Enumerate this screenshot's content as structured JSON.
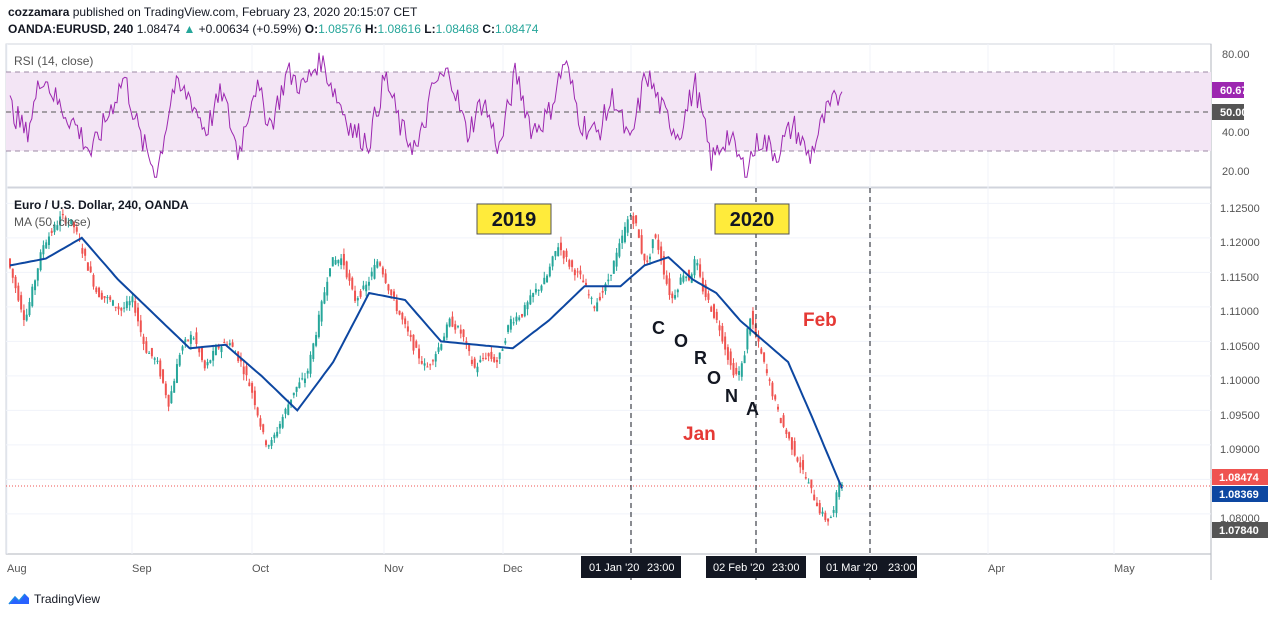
{
  "header": {
    "user": "cozzamara",
    "published": "published on TradingView.com, February 23, 2020 20:15:07 CET",
    "symbol": "OANDA:EURUSD, 240",
    "last": "1.08474",
    "change": "+0.00634 (+0.59%)",
    "o_label": "O:",
    "o": "1.08576",
    "h_label": "H:",
    "h": "1.08616",
    "l_label": "L:",
    "l": "1.08468",
    "c_label": "C:",
    "c": "1.08474"
  },
  "rsi_panel": {
    "title": "RSI (14, close)",
    "ticks": [
      "80.00",
      "60.00",
      "50.00",
      "40.00",
      "20.00"
    ],
    "current_value": "60.67",
    "mid_value": "50.00"
  },
  "price_panel": {
    "title": "Euro / U.S. Dollar, 240, OANDA",
    "ma_label": "MA (50, close)",
    "ticks": [
      "1.12500",
      "1.12000",
      "1.11500",
      "1.11000",
      "1.10500",
      "1.10000",
      "1.09500",
      "1.09000",
      "1.08500",
      "1.08000"
    ],
    "last_price_label": "1.08474",
    "ma_price_label": "1.08369",
    "low_price_label": "1.07840"
  },
  "annotations": {
    "year1": "2019",
    "year2": "2020",
    "corona": [
      "C",
      "O",
      "R",
      "O",
      "N",
      "A"
    ],
    "jan": "Jan",
    "feb": "Feb"
  },
  "time_axis": {
    "months": [
      "Aug",
      "Sep",
      "Oct",
      "Nov",
      "Dec",
      "Apr",
      "May"
    ],
    "markers": [
      "01 Jan '20",
      "02 Feb '20",
      "01 Mar '20"
    ],
    "marker_time": "23:00"
  },
  "footer": {
    "brand": "TradingView"
  },
  "colors": {
    "rsi_line": "#9c27b0",
    "rsi_band": "#f3e5f5",
    "ma_line": "#0d47a1",
    "candle_up": "#26a69a",
    "candle_down": "#ef5350",
    "last_price": "#ef5350",
    "ma_label": "#0d47a1",
    "annotation_box": "#ffeb3b",
    "annotation_red": "#e53935"
  },
  "chart_data": {
    "type": "candlestick",
    "symbol": "EURUSD",
    "timeframe": "240",
    "price_ylim": [
      1.0765,
      1.1265
    ],
    "rsi_ylim": [
      15,
      85
    ],
    "price_path": [
      [
        0,
        1.117
      ],
      [
        3,
        1.108
      ],
      [
        6,
        1.119
      ],
      [
        9,
        1.123
      ],
      [
        11,
        1.122
      ],
      [
        13,
        1.117
      ],
      [
        15,
        1.112
      ],
      [
        17,
        1.111
      ],
      [
        19,
        1.1095
      ],
      [
        21,
        1.111
      ],
      [
        23,
        1.104
      ],
      [
        25,
        1.102
      ],
      [
        27,
        1.096
      ],
      [
        29,
        1.104
      ],
      [
        31,
        1.106
      ],
      [
        33,
        1.101
      ],
      [
        35,
        1.104
      ],
      [
        37,
        1.105
      ],
      [
        39,
        1.102
      ],
      [
        41,
        1.0975
      ],
      [
        42,
        1.094
      ],
      [
        43,
        1.0905
      ],
      [
        44,
        1.09
      ],
      [
        46,
        1.094
      ],
      [
        48,
        1.098
      ],
      [
        50,
        1.1
      ],
      [
        52,
        1.108
      ],
      [
        54,
        1.1165
      ],
      [
        56,
        1.117
      ],
      [
        58,
        1.111
      ],
      [
        60,
        1.113
      ],
      [
        62,
        1.117
      ],
      [
        64,
        1.112
      ],
      [
        66,
        1.108
      ],
      [
        68,
        1.104
      ],
      [
        70,
        1.101
      ],
      [
        72,
        1.104
      ],
      [
        74,
        1.108
      ],
      [
        76,
        1.106
      ],
      [
        78,
        1.101
      ],
      [
        80,
        1.103
      ],
      [
        82,
        1.102
      ],
      [
        84,
        1.108
      ],
      [
        86,
        1.109
      ],
      [
        88,
        1.112
      ],
      [
        90,
        1.114
      ],
      [
        92,
        1.119
      ],
      [
        94,
        1.116
      ],
      [
        96,
        1.114
      ],
      [
        98,
        1.11
      ],
      [
        100,
        1.113
      ],
      [
        102,
        1.118
      ],
      [
        104,
        1.1235
      ],
      [
        105,
        1.122
      ],
      [
        106,
        1.118
      ],
      [
        107,
        1.116
      ],
      [
        108,
        1.1205
      ],
      [
        109,
        1.118
      ],
      [
        110,
        1.114
      ],
      [
        111,
        1.111
      ],
      [
        112,
        1.113
      ],
      [
        113,
        1.115
      ],
      [
        114,
        1.114
      ],
      [
        115,
        1.117
      ],
      [
        116,
        1.113
      ],
      [
        117,
        1.111
      ],
      [
        118,
        1.109
      ],
      [
        119,
        1.107
      ],
      [
        120,
        1.104
      ],
      [
        121,
        1.101
      ],
      [
        122,
        1.1
      ],
      [
        123,
        1.102
      ],
      [
        124,
        1.109
      ],
      [
        125,
        1.106
      ],
      [
        126,
        1.103
      ],
      [
        127,
        1.1
      ],
      [
        128,
        1.097
      ],
      [
        129,
        1.094
      ],
      [
        130,
        1.092
      ],
      [
        131,
        1.09
      ],
      [
        132,
        1.088
      ],
      [
        133,
        1.086
      ],
      [
        134,
        1.084
      ],
      [
        135,
        1.082
      ],
      [
        136,
        1.08
      ],
      [
        137,
        1.079
      ],
      [
        138,
        1.08
      ],
      [
        139,
        1.0848
      ]
    ],
    "ma_path": [
      [
        0,
        1.116
      ],
      [
        6,
        1.117
      ],
      [
        12,
        1.12
      ],
      [
        18,
        1.114
      ],
      [
        24,
        1.109
      ],
      [
        30,
        1.104
      ],
      [
        36,
        1.1045
      ],
      [
        42,
        1.1
      ],
      [
        48,
        1.095
      ],
      [
        54,
        1.102
      ],
      [
        60,
        1.112
      ],
      [
        66,
        1.111
      ],
      [
        72,
        1.105
      ],
      [
        78,
        1.1045
      ],
      [
        84,
        1.104
      ],
      [
        90,
        1.108
      ],
      [
        96,
        1.113
      ],
      [
        102,
        1.113
      ],
      [
        106,
        1.116
      ],
      [
        110,
        1.1172
      ],
      [
        114,
        1.114
      ],
      [
        118,
        1.112
      ],
      [
        122,
        1.108
      ],
      [
        126,
        1.105
      ],
      [
        130,
        1.102
      ],
      [
        134,
        1.094
      ],
      [
        139,
        1.0837
      ]
    ],
    "rsi_path": [
      [
        0,
        55
      ],
      [
        2,
        40
      ],
      [
        4,
        72
      ],
      [
        6,
        55
      ],
      [
        8,
        45
      ],
      [
        10,
        30
      ],
      [
        12,
        50
      ],
      [
        14,
        70
      ],
      [
        16,
        38
      ],
      [
        18,
        20
      ],
      [
        20,
        64
      ],
      [
        22,
        60
      ],
      [
        24,
        42
      ],
      [
        26,
        62
      ],
      [
        28,
        30
      ],
      [
        30,
        66
      ],
      [
        32,
        45
      ],
      [
        34,
        72
      ],
      [
        36,
        64
      ],
      [
        38,
        80
      ],
      [
        40,
        60
      ],
      [
        42,
        42
      ],
      [
        44,
        36
      ],
      [
        46,
        70
      ],
      [
        48,
        42
      ],
      [
        50,
        32
      ],
      [
        52,
        66
      ],
      [
        54,
        72
      ],
      [
        56,
        40
      ],
      [
        58,
        58
      ],
      [
        60,
        32
      ],
      [
        62,
        72
      ],
      [
        64,
        42
      ],
      [
        66,
        50
      ],
      [
        68,
        78
      ],
      [
        70,
        46
      ],
      [
        72,
        40
      ],
      [
        74,
        60
      ],
      [
        76,
        34
      ],
      [
        78,
        72
      ],
      [
        80,
        52
      ],
      [
        82,
        40
      ],
      [
        84,
        66
      ],
      [
        86,
        26
      ],
      [
        88,
        40
      ],
      [
        90,
        22
      ],
      [
        92,
        38
      ],
      [
        94,
        30
      ],
      [
        96,
        45
      ],
      [
        98,
        28
      ],
      [
        100,
        50
      ],
      [
        102,
        62
      ]
    ]
  }
}
